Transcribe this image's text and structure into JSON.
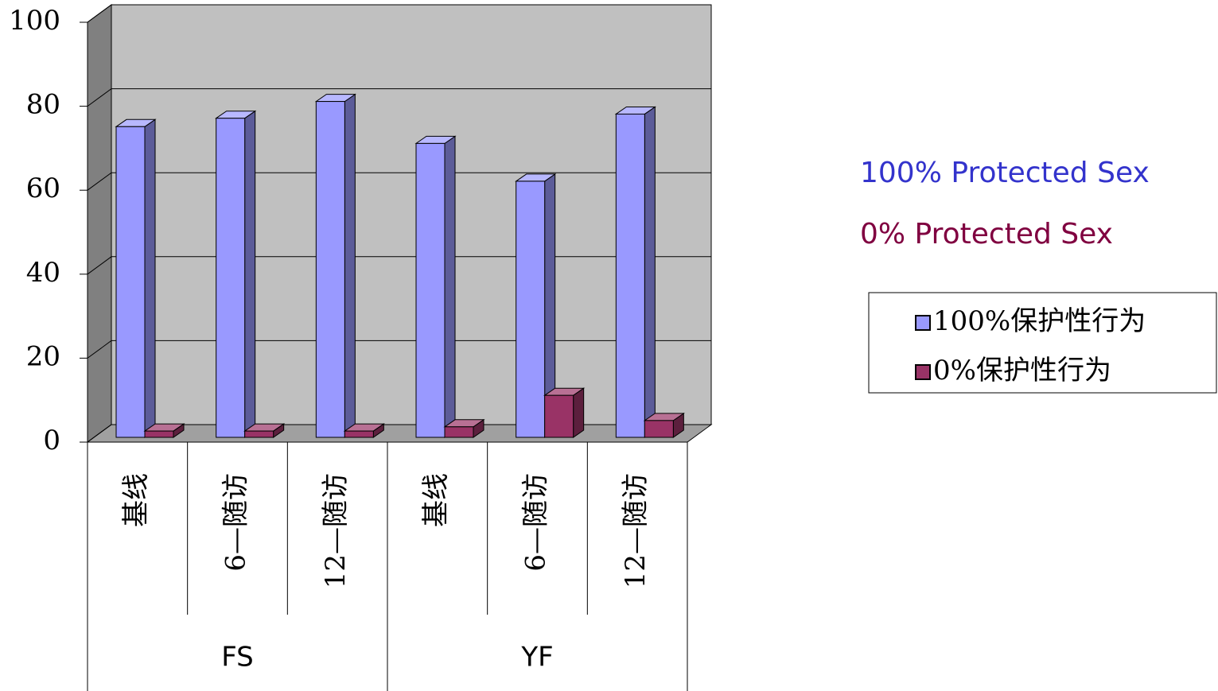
{
  "chart_data": {
    "type": "bar3d",
    "categories": [
      "基线",
      "6—随访",
      "12—随访",
      "基线",
      "6—随访",
      "12—随访"
    ],
    "groups": [
      "FS",
      "YF"
    ],
    "series": [
      {
        "name": "100%保护性行为",
        "color": "#9999ff",
        "values": [
          74,
          76,
          80,
          70,
          61,
          77
        ]
      },
      {
        "name": "0%保护性行为",
        "color": "#993366",
        "values": [
          1.5,
          1.5,
          1.5,
          2.5,
          10,
          4
        ]
      }
    ],
    "ylim": [
      0,
      100
    ],
    "yticks": [
      0,
      20,
      40,
      60,
      80,
      100
    ],
    "grid": true,
    "legend": "right",
    "annotations": [
      {
        "text": "100% Protected Sex",
        "color": "#3333cc"
      },
      {
        "text": "0% Protected Sex",
        "color": "#800040"
      }
    ]
  }
}
